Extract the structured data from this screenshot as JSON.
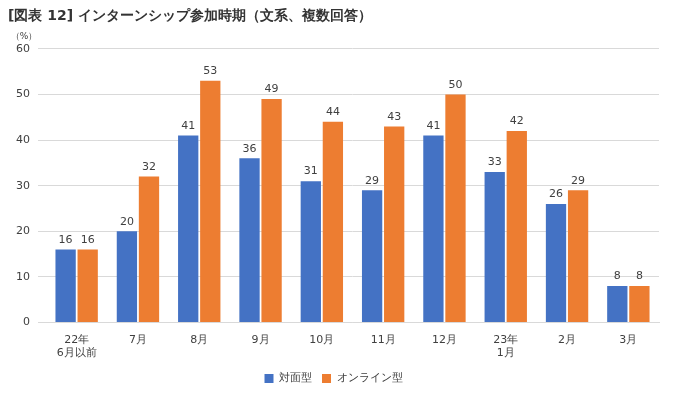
{
  "chart_data": {
    "type": "bar",
    "title": "[図表 12] インターンシップ参加時期（文系、複数回答）",
    "y_label": "（%）",
    "categories": [
      "22年\n6月以前",
      "7月",
      "8月",
      "9月",
      "10月",
      "11月",
      "12月",
      "23年\n1月",
      "2月",
      "3月"
    ],
    "series": [
      {
        "name": "対面型",
        "color": "#4472c4",
        "values": [
          16,
          20,
          41,
          36,
          31,
          29,
          41,
          33,
          26,
          8
        ]
      },
      {
        "name": "オンライン型",
        "color": "#ed7d31",
        "values": [
          16,
          32,
          53,
          49,
          44,
          43,
          50,
          42,
          29,
          8
        ]
      }
    ],
    "ylim": [
      0,
      60
    ],
    "yticks": [
      0,
      10,
      20,
      30,
      40,
      50,
      60
    ],
    "grid": true,
    "legend": "bottom",
    "data_labels": true
  }
}
